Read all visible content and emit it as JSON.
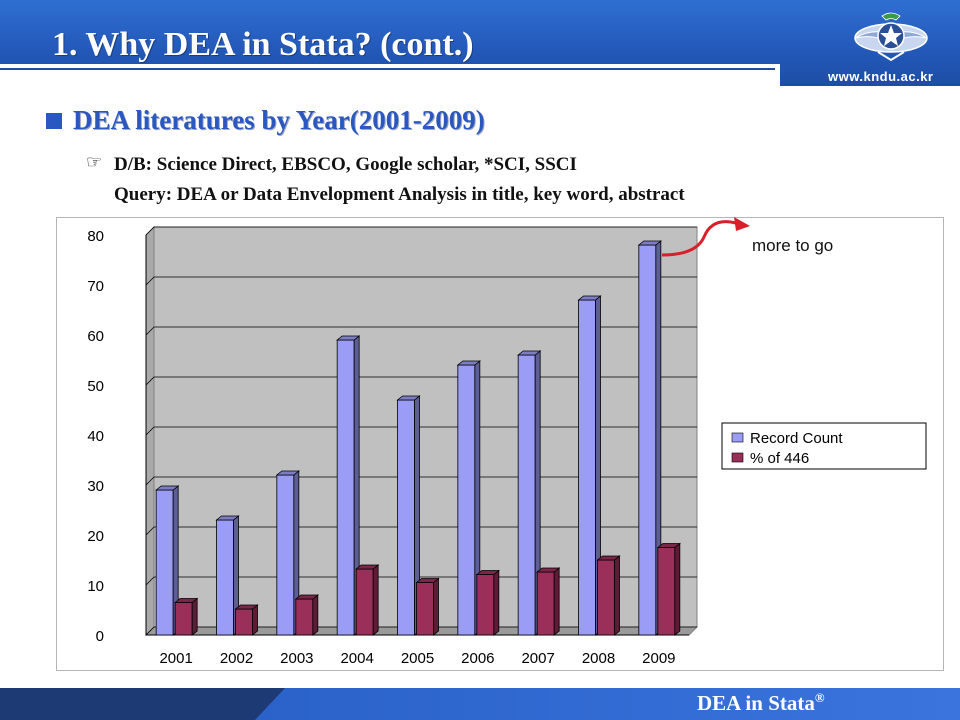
{
  "slide": {
    "title": "1. Why DEA in Stata? (cont.)",
    "website": "www.kndu.ac.kr",
    "section_heading": "DEA literatures by Year(2001-2009)",
    "pointer_icon": "pointing-hand-icon",
    "db_line": "D/B: Science Direct, EBSCO, Google scholar, *SCI, SSCI",
    "query_line": "Query: DEA or Data Envelopment Analysis in title, key word, abstract",
    "annotation": "more to go",
    "footer_text": "DEA in Stata",
    "footer_mark": "®"
  },
  "colors": {
    "header_blue": "#2a62c9",
    "heading_blue": "#2a58c0",
    "series1": "#9b9cf5",
    "series2": "#9a2f5a",
    "plot_bg": "#c0c0c0",
    "arrow": "#d81f2a"
  },
  "chart_data": {
    "type": "bar",
    "categories": [
      "2001",
      "2002",
      "2003",
      "2004",
      "2005",
      "2006",
      "2007",
      "2008",
      "2009"
    ],
    "series": [
      {
        "name": "Record Count",
        "values": [
          29,
          23,
          32,
          59,
          47,
          54,
          56,
          67,
          78
        ]
      },
      {
        "name": "% of 446",
        "values": [
          6.5,
          5.2,
          7.2,
          13.2,
          10.5,
          12.1,
          12.6,
          15.0,
          17.5
        ]
      }
    ],
    "yticks": [
      "0",
      "10",
      "20",
      "30",
      "40",
      "50",
      "60",
      "70",
      "80"
    ],
    "ylim": [
      0,
      80
    ],
    "grid": true,
    "legend_position": "right",
    "three_d": true
  }
}
